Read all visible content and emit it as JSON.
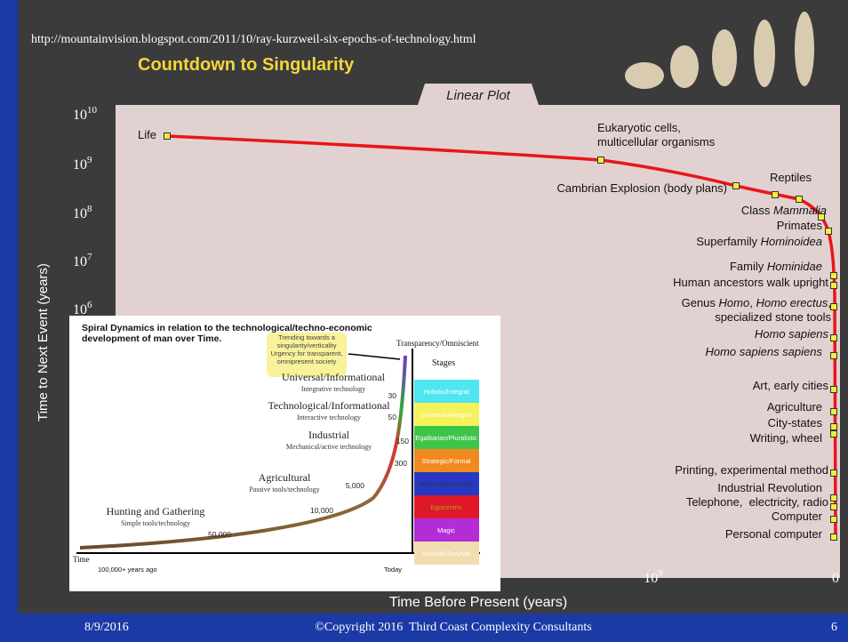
{
  "slide": {
    "url": "http://mountainvision.blogspot.com/2011/10/ray-kurzweil-six-epochs-of-technology.html",
    "title": "Countdown to Singularity",
    "tab": "Linear Plot",
    "y_label": "Time to Next Event (years)",
    "x_label": "Time Before Present (years)",
    "yticks": [
      {
        "base": "10",
        "exp": "10"
      },
      {
        "base": "10",
        "exp": "9"
      },
      {
        "base": "10",
        "exp": "8"
      },
      {
        "base": "10",
        "exp": "7"
      },
      {
        "base": "10",
        "exp": "6"
      }
    ],
    "xticks": [
      {
        "base": "10",
        "exp": "9"
      },
      {
        "base": "0"
      }
    ],
    "events": [
      {
        "lines": [
          [
            {
              "t": "Life"
            }
          ]
        ]
      },
      {
        "lines": [
          [
            {
              "t": "Eukaryotic cells,"
            }
          ],
          [
            {
              "t": "multicellular organisms"
            }
          ]
        ]
      },
      {
        "lines": [
          [
            {
              "t": "Cambrian Explosion (body plans)"
            }
          ]
        ]
      },
      {
        "lines": [
          [
            {
              "t": "Reptiles"
            }
          ]
        ]
      },
      {
        "lines": [
          [
            {
              "t": "Class "
            },
            {
              "t": "Mammalia",
              "i": true
            }
          ]
        ]
      },
      {
        "lines": [
          [
            {
              "t": "Primates"
            }
          ]
        ]
      },
      {
        "lines": [
          [
            {
              "t": "Superfamily "
            },
            {
              "t": "Hominoidea",
              "i": true
            }
          ]
        ]
      },
      {
        "lines": [
          [
            {
              "t": "Family "
            },
            {
              "t": "Hominidae",
              "i": true
            }
          ]
        ]
      },
      {
        "lines": [
          [
            {
              "t": "Human ancestors walk upright"
            }
          ]
        ]
      },
      {
        "lines": [
          [
            {
              "t": "Genus "
            },
            {
              "t": "Homo",
              "i": true
            },
            {
              "t": ", "
            },
            {
              "t": "Homo erectus",
              "i": true
            },
            {
              "t": ","
            }
          ],
          [
            {
              "t": "specialized stone tools"
            }
          ]
        ]
      },
      {
        "lines": [
          [
            {
              "t": "Homo sapiens",
              "i": true
            }
          ]
        ]
      },
      {
        "lines": [
          [
            {
              "t": "Homo sapiens sapiens",
              "i": true
            }
          ]
        ]
      },
      {
        "lines": [
          [
            {
              "t": "Art, early cities"
            }
          ]
        ]
      },
      {
        "lines": [
          [
            {
              "t": "Agriculture"
            }
          ]
        ]
      },
      {
        "lines": [
          [
            {
              "t": "City-states"
            }
          ]
        ]
      },
      {
        "lines": [
          [
            {
              "t": "Writing, wheel"
            }
          ]
        ]
      },
      {
        "lines": [
          [
            {
              "t": "Printing, experimental method"
            }
          ]
        ]
      },
      {
        "lines": [
          [
            {
              "t": "Industrial Revolution"
            }
          ]
        ]
      },
      {
        "lines": [
          [
            {
              "t": "Telephone,  electricity, radio"
            }
          ]
        ]
      },
      {
        "lines": [
          [
            {
              "t": "Computer"
            }
          ]
        ]
      },
      {
        "lines": [
          [
            {
              "t": "Personal computer"
            }
          ]
        ]
      }
    ]
  },
  "inset": {
    "heading": [
      "Spiral Dynamics in relation to the technological/techno-economic",
      "development of man over Time."
    ],
    "note": [
      "Trending towards a",
      "singularity/verticality",
      "Urgency for transparent,",
      "omnipresent society"
    ],
    "top_label": "Transparency/Omniscient",
    "stages_title": "Stages",
    "stages": [
      "Holistic/Integral",
      "Systemic/Integral",
      "Egalitarian/Pluralistic",
      "Strategic/Formal",
      "Mythic/Absolutistic",
      "Egocentric",
      "Magic",
      "Archaic/Survival"
    ],
    "eras": [
      {
        "name": "Universal/Informational",
        "sub": "Integrative technology"
      },
      {
        "name": "Technological/Informational",
        "sub": "Interactive technology"
      },
      {
        "name": "Industrial",
        "sub": "Mechanical/active technology"
      },
      {
        "name": "Agricultural",
        "sub": "Passive tools/technology"
      },
      {
        "name": "Hunting and Gathering",
        "sub": "Simple tools/technology"
      }
    ],
    "numbers": [
      "30",
      "50",
      "150",
      "300",
      "5,000",
      "10,000",
      "50,000"
    ],
    "axis_title": "Time",
    "axis_start": "100,000+ years ago",
    "axis_end": "Today"
  },
  "footer": {
    "date": "8/9/2016",
    "copyright": "©Copyright 2016  Third Coast Complexity Consultants",
    "page": "6"
  }
}
